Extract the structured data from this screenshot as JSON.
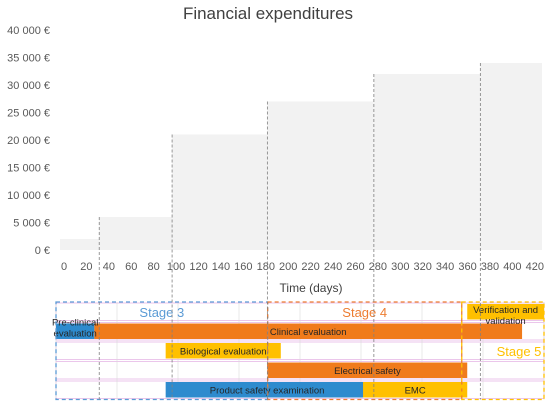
{
  "chart_data": {
    "type": "area",
    "title": "Financial expenditures",
    "xlabel": "Time (days)",
    "ylabel": "",
    "xlim": [
      0,
      430
    ],
    "ylim": [
      0,
      40000
    ],
    "x_ticks": [
      "0",
      "20",
      "40",
      "60",
      "80",
      "100",
      "120",
      "140",
      "160",
      "180",
      "200",
      "220",
      "240",
      "260",
      "280",
      "300",
      "320",
      "340",
      "360",
      "380",
      "400",
      "420"
    ],
    "y_ticks": [
      "0 €",
      "5 000 €",
      "10 000 €",
      "15 000 €",
      "20 000 €",
      "25 000 €",
      "30 000 €",
      "35 000 €",
      "40 000 €"
    ],
    "fill_color": "#f2f2f2",
    "grid": false,
    "steps": [
      {
        "x0": 0,
        "x1": 35,
        "y": 2000
      },
      {
        "x0": 35,
        "x1": 100,
        "y": 6000
      },
      {
        "x0": 100,
        "x1": 185,
        "y": 21000
      },
      {
        "x0": 185,
        "x1": 280,
        "y": 27000
      },
      {
        "x0": 280,
        "x1": 375,
        "y": 32000
      },
      {
        "x0": 375,
        "x1": 430,
        "y": 34000
      }
    ],
    "milestones": [
      35,
      100,
      185,
      280,
      375
    ]
  },
  "gantt": {
    "stages": [
      {
        "label": "Stage 3",
        "color": "#5b9bd5",
        "x0": 0,
        "x1": 193
      },
      {
        "label": "Stage 4",
        "color": "#ed7d31",
        "x0": 193,
        "x1": 370
      },
      {
        "label": "Stage 5",
        "color": "#ffc000",
        "x0": 370,
        "x1": 445
      }
    ],
    "tasks": [
      {
        "label": "Pre-clinical evaluation",
        "color": "#2e8bce",
        "row": 1,
        "x0": 0,
        "x1": 35
      },
      {
        "label": "Clinical evaluation",
        "color": "#f07b1b",
        "row": 1,
        "x0": 35,
        "x1": 425
      },
      {
        "label": "Biological evaluation",
        "color": "#ffc000",
        "row": 2,
        "x0": 100,
        "x1": 205
      },
      {
        "label": "Electrical safety",
        "color": "#f07b1b",
        "row": 3,
        "x0": 193,
        "x1": 375
      },
      {
        "label": "Product safety examination",
        "color": "#2e8bce",
        "row": 4,
        "x0": 100,
        "x1": 285
      },
      {
        "label": "EMC",
        "color": "#ffc000",
        "row": 4,
        "x0": 280,
        "x1": 375
      },
      {
        "label": "Verification and validation",
        "color": "#ffc000",
        "row": 0,
        "x0": 375,
        "x1": 445
      }
    ]
  }
}
